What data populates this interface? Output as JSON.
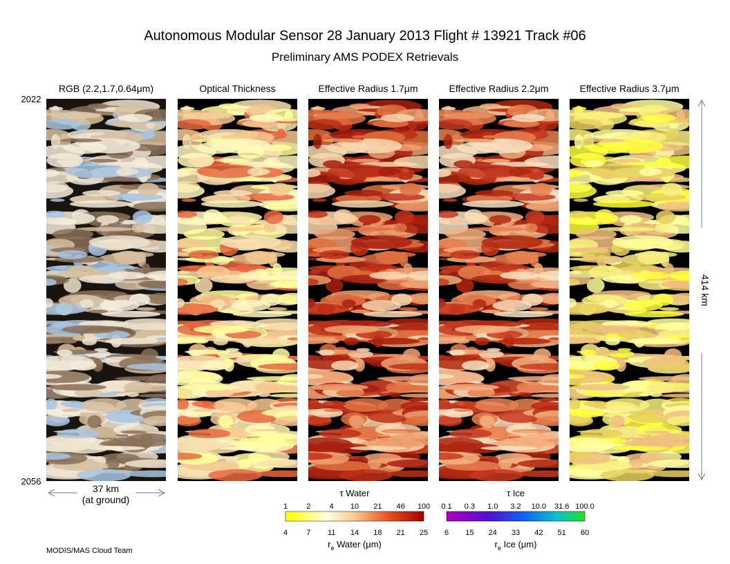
{
  "header": {
    "title": "Autonomous Modular Sensor  28 January 2013  Flight # 13921 Track #06",
    "subtitle": "Preliminary AMS PODEX Retrievals"
  },
  "panels": [
    {
      "title": "RGB (2.2,1.7,0.64μm)"
    },
    {
      "title": "Optical Thickness"
    },
    {
      "title": "Effective Radius 1.7μm"
    },
    {
      "title": "Effective Radius 2.2μm"
    },
    {
      "title": "Effective Radius 3.7μm"
    }
  ],
  "time_labels": {
    "start": "2022",
    "end": "2056"
  },
  "scale": {
    "width": "37 km",
    "width_note": "(at ground)",
    "length": "414 km"
  },
  "colorbars": [
    {
      "title": "τ Water",
      "top_ticks": [
        "1",
        "2",
        "4",
        "10",
        "21",
        "46",
        "100"
      ],
      "bottom_ticks": [
        "4",
        "7",
        "11",
        "14",
        "18",
        "21",
        "25"
      ],
      "bottom_label": {
        "symbol": "r",
        "subscript": "e",
        "rest": " Water (μm)"
      }
    },
    {
      "title": "τ Ice",
      "top_ticks": [
        "0.1",
        "0.3",
        "1.0",
        "3.2",
        "10.0",
        "31.6",
        "100.0"
      ],
      "bottom_ticks": [
        "6",
        "15",
        "24",
        "33",
        "42",
        "51",
        "60"
      ],
      "bottom_label": {
        "symbol": "r",
        "subscript": "e",
        "rest": " Ice (μm)"
      }
    }
  ],
  "footer": {
    "credit": "MODIS/MAS Cloud Team"
  }
}
